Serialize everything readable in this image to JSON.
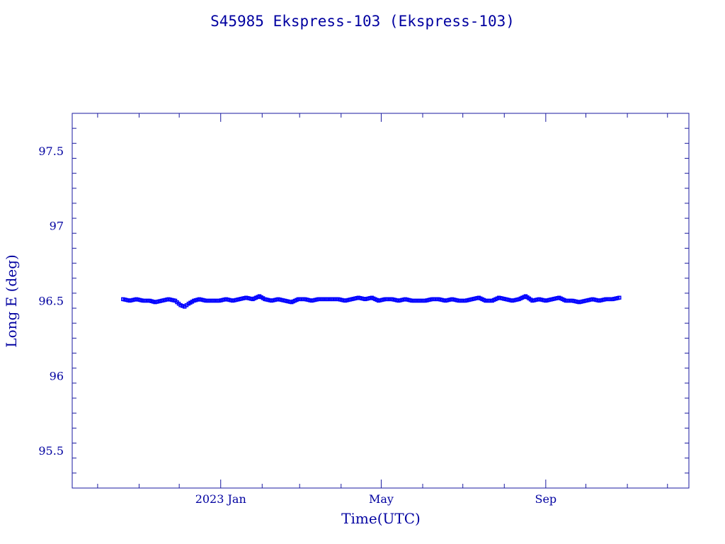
{
  "colors": {
    "axis": "#1a1aa0",
    "text": "#0000a0",
    "series": "#0000ff",
    "background": "#ffffff"
  },
  "chart_data": {
    "type": "scatter",
    "title": "S45985 Ekspress-103  (Ekspress-103)",
    "xlabel": "Time(UTC)",
    "ylabel": "Long E (deg)",
    "ylim": [
      95.25,
      97.75
    ],
    "xlim": [
      "2022-09-12",
      "2023-12-17"
    ],
    "x_ticks": [
      {
        "date": "2023-01-01",
        "label": "2023 Jan"
      },
      {
        "date": "2023-05-01",
        "label": "May"
      },
      {
        "date": "2023-09-01",
        "label": "Sep"
      }
    ],
    "y_ticks": [
      95.5,
      96,
      96.5,
      97,
      97.5
    ],
    "grid": false,
    "legend": "none",
    "series": [
      {
        "x": [
          "2022-10-20",
          "2022-10-25",
          "2022-10-30",
          "2022-11-04",
          "2022-11-09",
          "2022-11-13",
          "2022-11-18",
          "2022-11-23",
          "2022-11-28",
          "2022-12-02",
          "2022-12-05",
          "2022-12-08",
          "2022-12-12",
          "2022-12-16",
          "2022-12-21",
          "2022-12-26",
          "2022-12-31",
          "2023-01-05",
          "2023-01-10",
          "2023-01-15",
          "2023-01-20",
          "2023-01-25",
          "2023-01-30",
          "2023-02-03",
          "2023-02-08",
          "2023-02-13",
          "2023-02-18",
          "2023-02-23",
          "2023-02-28",
          "2023-03-05",
          "2023-03-10",
          "2023-03-15",
          "2023-03-20",
          "2023-03-25",
          "2023-03-30",
          "2023-04-04",
          "2023-04-09",
          "2023-04-14",
          "2023-04-19",
          "2023-04-24",
          "2023-04-29",
          "2023-05-04",
          "2023-05-09",
          "2023-05-14",
          "2023-05-19",
          "2023-05-24",
          "2023-05-29",
          "2023-06-03",
          "2023-06-08",
          "2023-06-13",
          "2023-06-18",
          "2023-06-23",
          "2023-06-28",
          "2023-07-03",
          "2023-07-08",
          "2023-07-13",
          "2023-07-18",
          "2023-07-23",
          "2023-07-28",
          "2023-08-02",
          "2023-08-07",
          "2023-08-12",
          "2023-08-17",
          "2023-08-22",
          "2023-08-27",
          "2023-09-01",
          "2023-09-06",
          "2023-09-11",
          "2023-09-16",
          "2023-09-21",
          "2023-09-26",
          "2023-10-01",
          "2023-10-06",
          "2023-10-11",
          "2023-10-16",
          "2023-10-21",
          "2023-10-26"
        ],
        "values": [
          96.51,
          96.5,
          96.51,
          96.5,
          96.5,
          96.49,
          96.5,
          96.51,
          96.5,
          96.47,
          96.46,
          96.48,
          96.5,
          96.51,
          96.5,
          96.5,
          96.5,
          96.51,
          96.5,
          96.51,
          96.52,
          96.51,
          96.53,
          96.51,
          96.5,
          96.51,
          96.5,
          96.49,
          96.51,
          96.51,
          96.5,
          96.51,
          96.51,
          96.51,
          96.51,
          96.5,
          96.51,
          96.52,
          96.51,
          96.52,
          96.5,
          96.51,
          96.51,
          96.5,
          96.51,
          96.5,
          96.5,
          96.5,
          96.51,
          96.51,
          96.5,
          96.51,
          96.5,
          96.5,
          96.51,
          96.52,
          96.5,
          96.5,
          96.52,
          96.51,
          96.5,
          96.51,
          96.53,
          96.5,
          96.51,
          96.5,
          96.51,
          96.52,
          96.5,
          96.5,
          96.49,
          96.5,
          96.51,
          96.5,
          96.51,
          96.51,
          96.52
        ]
      }
    ]
  }
}
